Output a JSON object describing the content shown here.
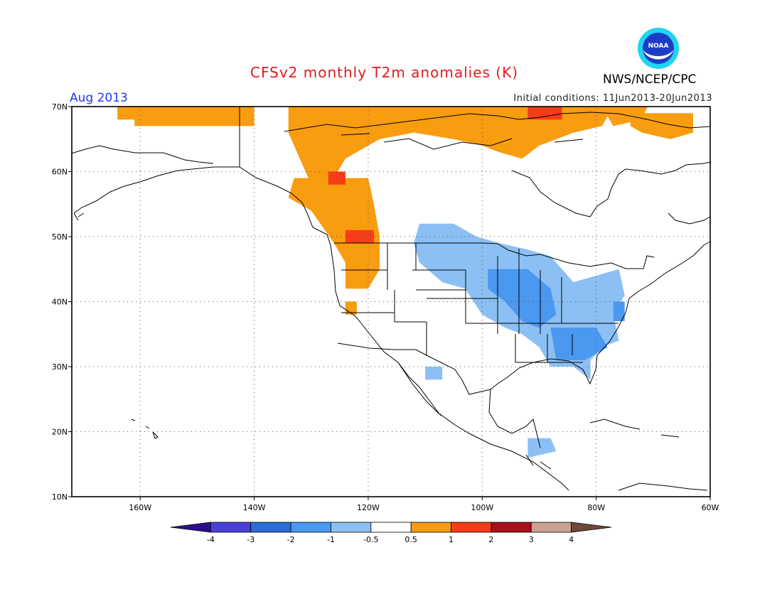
{
  "title": "CFSv2 monthly T2m anomalies (K)",
  "valid_month": "Aug 2013",
  "initial_conditions": "Initial conditions: 11Jun2013-20Jun2013",
  "agency": "NWS/NCEP/CPC",
  "logo_text": "NOAA",
  "map": {
    "lon_range": [
      -172,
      -60
    ],
    "lat_range": [
      10,
      70
    ],
    "lon_labels": [
      {
        "lon": -160,
        "text": "160W"
      },
      {
        "lon": -140,
        "text": "140W"
      },
      {
        "lon": -120,
        "text": "120W"
      },
      {
        "lon": -100,
        "text": "100W"
      },
      {
        "lon": -80,
        "text": "80W"
      },
      {
        "lon": -60,
        "text": "60W"
      }
    ],
    "lat_labels": [
      {
        "lat": 70,
        "text": "70N"
      },
      {
        "lat": 60,
        "text": "60N"
      },
      {
        "lat": 50,
        "text": "50N"
      },
      {
        "lat": 40,
        "text": "40N"
      },
      {
        "lat": 30,
        "text": "30N"
      },
      {
        "lat": 20,
        "text": "20N"
      },
      {
        "lat": 10,
        "text": "10N"
      }
    ]
  },
  "colorbar": {
    "labels": [
      "-4",
      "-3",
      "-2",
      "-1",
      "-0.5",
      "0.5",
      "1",
      "2",
      "3",
      "4"
    ],
    "colors": [
      "#2a0f8c",
      "#4b40d6",
      "#2a6ed6",
      "#4a98f0",
      "#8cc0f4",
      "#ffffff",
      "#f89c10",
      "#f83c18",
      "#a8101c",
      "#c8a094",
      "#6e4a3c"
    ]
  },
  "colors": {
    "warm1": "#f89c10",
    "warm2": "#f83c18",
    "cool1": "#8cc0f4",
    "cool2": "#4a98f0"
  },
  "anomaly_regions": [
    {
      "level": "warm1",
      "lonlat": [
        [
          -161,
          70
        ],
        [
          -140,
          70
        ],
        [
          -140,
          67
        ],
        [
          -161,
          67
        ]
      ]
    },
    {
      "level": "warm1",
      "lonlat": [
        [
          -164,
          70
        ],
        [
          -155,
          70
        ],
        [
          -155,
          68
        ],
        [
          -164,
          68
        ]
      ]
    },
    {
      "level": "warm1",
      "lonlat": [
        [
          -134,
          70
        ],
        [
          -77,
          70
        ],
        [
          -79,
          67
        ],
        [
          -84,
          66
        ],
        [
          -90,
          64
        ],
        [
          -93,
          62
        ],
        [
          -97,
          63
        ],
        [
          -100,
          64
        ],
        [
          -105,
          65
        ],
        [
          -112,
          66
        ],
        [
          -118,
          65
        ],
        [
          -124,
          62
        ],
        [
          -126,
          59
        ],
        [
          -130,
          58
        ],
        [
          -132,
          62
        ],
        [
          -134,
          66
        ]
      ]
    },
    {
      "level": "warm1",
      "lonlat": [
        [
          -133,
          59
        ],
        [
          -120,
          59
        ],
        [
          -119,
          55
        ],
        [
          -118,
          50
        ],
        [
          -118,
          45
        ],
        [
          -120,
          42
        ],
        [
          -124,
          42
        ],
        [
          -124,
          46
        ],
        [
          -126,
          49
        ],
        [
          -130,
          54
        ],
        [
          -134,
          56
        ]
      ]
    },
    {
      "level": "warm1",
      "lonlat": [
        [
          -79,
          70
        ],
        [
          -71,
          70
        ],
        [
          -72,
          68
        ],
        [
          -77,
          67
        ]
      ]
    },
    {
      "level": "warm1",
      "lonlat": [
        [
          -74,
          69
        ],
        [
          -63,
          69
        ],
        [
          -63,
          66
        ],
        [
          -67,
          65
        ],
        [
          -72,
          66
        ],
        [
          -74,
          67
        ]
      ]
    },
    {
      "level": "warm1",
      "lonlat": [
        [
          -124,
          40
        ],
        [
          -122,
          40
        ],
        [
          -122,
          38
        ],
        [
          -124,
          38
        ]
      ]
    },
    {
      "level": "warm2",
      "lonlat": [
        [
          -127,
          60
        ],
        [
          -124,
          60
        ],
        [
          -124,
          58
        ],
        [
          -127,
          58
        ]
      ]
    },
    {
      "level": "warm2",
      "lonlat": [
        [
          -124,
          51
        ],
        [
          -119,
          51
        ],
        [
          -119,
          49
        ],
        [
          -124,
          49
        ]
      ]
    },
    {
      "level": "warm2",
      "lonlat": [
        [
          -92,
          70
        ],
        [
          -86,
          70
        ],
        [
          -86,
          68
        ],
        [
          -92,
          68
        ]
      ]
    },
    {
      "level": "cool1",
      "lonlat": [
        [
          -111,
          52
        ],
        [
          -105,
          52
        ],
        [
          -101,
          50
        ],
        [
          -97,
          49
        ],
        [
          -92,
          48
        ],
        [
          -88,
          47
        ],
        [
          -84,
          43
        ],
        [
          -80,
          44
        ],
        [
          -76,
          45
        ],
        [
          -75,
          41
        ],
        [
          -77,
          38
        ],
        [
          -76,
          34
        ],
        [
          -79,
          33
        ],
        [
          -81,
          31
        ],
        [
          -81,
          28
        ],
        [
          -84,
          30
        ],
        [
          -88,
          30
        ],
        [
          -90,
          33
        ],
        [
          -93,
          35
        ],
        [
          -96,
          36
        ],
        [
          -100,
          38
        ],
        [
          -103,
          42
        ],
        [
          -107,
          43
        ],
        [
          -111,
          46
        ],
        [
          -112,
          49
        ]
      ]
    },
    {
      "level": "cool1",
      "lonlat": [
        [
          -110,
          30
        ],
        [
          -107,
          30
        ],
        [
          -107,
          28
        ],
        [
          -110,
          28
        ]
      ]
    },
    {
      "level": "cool1",
      "lonlat": [
        [
          -92,
          19
        ],
        [
          -88,
          19
        ],
        [
          -87,
          17
        ],
        [
          -92,
          16
        ]
      ]
    },
    {
      "level": "cool2",
      "lonlat": [
        [
          -99,
          45
        ],
        [
          -92,
          45
        ],
        [
          -88,
          42
        ],
        [
          -87,
          38
        ],
        [
          -90,
          36
        ],
        [
          -93,
          37
        ],
        [
          -96,
          40
        ],
        [
          -99,
          42
        ]
      ]
    },
    {
      "level": "cool2",
      "lonlat": [
        [
          -88,
          36
        ],
        [
          -80,
          36
        ],
        [
          -78,
          33
        ],
        [
          -82,
          31
        ],
        [
          -87,
          31
        ]
      ]
    },
    {
      "level": "cool2",
      "lonlat": [
        [
          -77,
          40
        ],
        [
          -75,
          40
        ],
        [
          -75,
          37
        ],
        [
          -77,
          37
        ]
      ]
    }
  ]
}
